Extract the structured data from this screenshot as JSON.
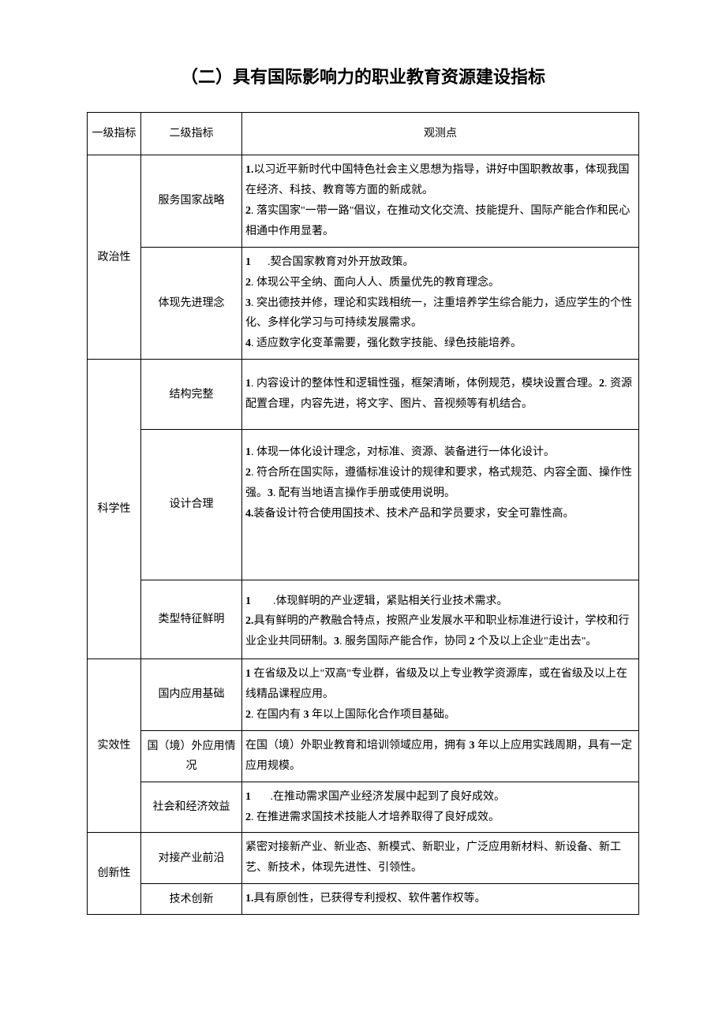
{
  "title": "（二）具有国际影响力的职业教育资源建设指标",
  "headers": {
    "col1": "一级指标",
    "col2": "二级指标",
    "col3": "观测点"
  },
  "rows": [
    {
      "level1": "政治性",
      "level1_rowspan": 2,
      "level2": "服务国家战略",
      "obs_html": "<span class='bold'>1.</span>以习近平新时代中国特色社会主义思想为指导，讲好中国职教故事，体现我国在经济、科技、教育等方面的新成就。<br><span class='bold'>2</span>. 落实国家\"一带一路\"倡议，在推动文化交流、技能提升、国际产能合作和民心相通中作用显著。"
    },
    {
      "level2": "体现先进理念",
      "obs_html": "<span class='bold'>1</span>&nbsp;&nbsp;&nbsp;&nbsp;&nbsp;&nbsp;.契合国家教育对外开放政策。<br><span class='bold'>2</span>. 体现公平全纳、面向人人、质量优先的教育理念。<br><span class='bold'>3</span>. 突出德技并修，理论和实践相统一，注重培养学生综合能力，适应学生的个性化、多样化学习与可持续发展需求。<br><span class='bold'>4</span>. 适应数字化变革需要，强化数字技能、绿色技能培养。"
    },
    {
      "level1": "科学性",
      "level1_rowspan": 3,
      "level2": "结构完整",
      "obs_html": "<span class='bold'>1</span>. 内容设计的整体性和逻辑性强，框架清晰，体例规范，模块设置合理。<span class='bold'>2</span>. 资源配置合理，内容先进，将文字、图片、音视频等有机结合。",
      "extra_padding": "padding-top:18px;padding-bottom:18px;"
    },
    {
      "level2": "设计合理",
      "obs_html": "<span class='bold'>1</span>. 体现一体化设计理念，对标准、资源、装备进行一体化设计。<br><span class='bold'>2</span>. 符合所在国实际，遵循标准设计的规律和要求，格式规范、内容全面、操作性强。<span class='bold'>3</span>. 配有当地语言操作手册或使用说明。<br><span class='bold'>4.</span>装备设计符合使用国技术、技术产品和学员要求，安全可靠性高。",
      "extra_padding": "padding-top:16px;padding-bottom:70px;"
    },
    {
      "level2": "类型特征鲜明",
      "obs_html": "<span class='bold'>1</span>&nbsp;&nbsp;&nbsp;&nbsp;&nbsp;&nbsp;&nbsp;&nbsp;.体现鲜明的产业逻辑，紧贴相关行业技术需求。<br><span class='bold'>2.</span>具有鲜明的产教融合特点，按照产业发展水平和职业标准进行设计，学校和行业企业共同研制。<span class='bold'>3</span>. 服务国际产能合作，协同 <span class='bold'>2</span> 个及以上企业\"走出去\"。",
      "extra_padding": "padding-top:14px;padding-bottom:8px;"
    },
    {
      "level1": "实效性",
      "level1_rowspan": 3,
      "level2": "国内应用基础",
      "obs_html": "<span class='bold'>1</span> 在省级及以上\"双高\"专业群，省级及以上专业教学资源库，或在省级及以上在线精品课程应用。<br><span class='bold'>2</span>. 在国内有 <span class='bold'>3</span> 年以上国际化合作项目基础。"
    },
    {
      "level2": "国（境）外应用情况",
      "obs_html": "在国（境）外职业教育和培训领域应用，拥有 <span class='bold'>3</span> 年以上应用实践周期，具有一定应用规模。"
    },
    {
      "level2": "社会和经济效益",
      "obs_html": "<span class='bold'>1</span>&nbsp;&nbsp;&nbsp;&nbsp;&nbsp;&nbsp;&nbsp;.在推动需求国产业经济发展中起到了良好成效。<br><span class='bold'>2</span>. 在推进需求国技术技能人才培养取得了良好成效。"
    },
    {
      "level1": "创新性",
      "level1_rowspan": 2,
      "level2": "对接产业前沿",
      "obs_html": "紧密对接新产业、新业态、新模式、新职业，广泛应用新材料、新设备、新工艺、新技术，体现先进性、引领性。"
    },
    {
      "level2": "技术创新",
      "obs_html": "<span class='bold'>1.</span>具有原创性，已获得专利授权、软件著作权等。"
    }
  ]
}
